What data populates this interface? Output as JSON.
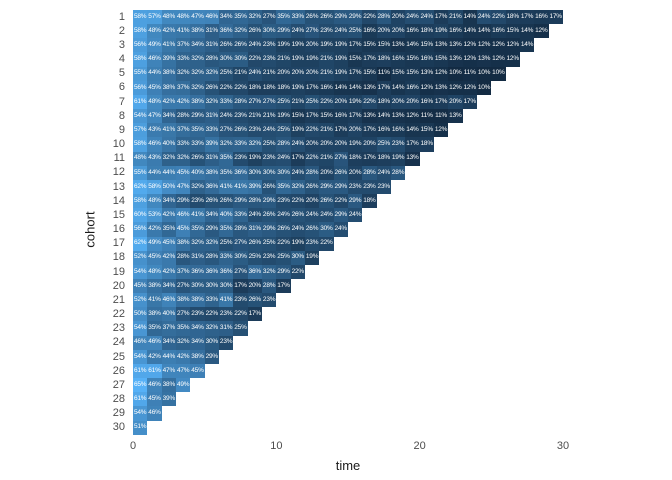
{
  "chart_data": {
    "type": "heatmap",
    "title": "",
    "xlabel": "time",
    "ylabel": "cohort",
    "x_ticks": [
      {
        "value": 0,
        "label": "0"
      },
      {
        "value": 10,
        "label": "10"
      },
      {
        "value": 20,
        "label": "20"
      },
      {
        "value": 30,
        "label": "30"
      }
    ],
    "x_range": [
      0,
      30
    ],
    "value_suffix": "%",
    "legend": "none",
    "grid": "off",
    "color_scale": {
      "low_color": "#132B43",
      "high_color": "#56B1F7",
      "domain": [
        10,
        65
      ]
    },
    "rows": [
      {
        "label": "1",
        "values": [
          58,
          57,
          48,
          48,
          47,
          46,
          34,
          35,
          32,
          27,
          35,
          33,
          26,
          26,
          29,
          29,
          22,
          28,
          20,
          24,
          24,
          17,
          21,
          14,
          24,
          22,
          18,
          17,
          16,
          17
        ]
      },
      {
        "label": "2",
        "values": [
          58,
          48,
          42,
          41,
          38,
          31,
          36,
          32,
          26,
          30,
          29,
          24,
          27,
          23,
          24,
          25,
          16,
          20,
          20,
          16,
          18,
          19,
          16,
          14,
          14,
          16,
          15,
          14,
          12
        ]
      },
      {
        "label": "3",
        "values": [
          56,
          49,
          41,
          37,
          34,
          31,
          26,
          26,
          24,
          23,
          19,
          19,
          20,
          19,
          19,
          17,
          15,
          15,
          13,
          14,
          15,
          13,
          13,
          12,
          12,
          12,
          12,
          14
        ]
      },
      {
        "label": "4",
        "values": [
          58,
          46,
          39,
          33,
          32,
          28,
          30,
          30,
          22,
          23,
          21,
          19,
          19,
          21,
          19,
          15,
          17,
          18,
          16,
          15,
          16,
          15,
          13,
          12,
          13,
          12,
          12
        ]
      },
      {
        "label": "5",
        "values": [
          55,
          44,
          38,
          32,
          32,
          32,
          25,
          21,
          24,
          21,
          20,
          20,
          20,
          21,
          19,
          17,
          15,
          11,
          15,
          15,
          13,
          12,
          10,
          11,
          10,
          10
        ]
      },
      {
        "label": "6",
        "values": [
          56,
          45,
          38,
          37,
          32,
          26,
          22,
          22,
          18,
          18,
          18,
          19,
          17,
          16,
          14,
          14,
          13,
          17,
          14,
          16,
          12,
          13,
          12,
          12,
          10
        ]
      },
      {
        "label": "7",
        "values": [
          61,
          48,
          42,
          42,
          38,
          32,
          33,
          28,
          27,
          27,
          25,
          21,
          25,
          22,
          20,
          19,
          22,
          18,
          20,
          20,
          16,
          17,
          20,
          17
        ]
      },
      {
        "label": "8",
        "values": [
          54,
          47,
          34,
          28,
          29,
          31,
          24,
          23,
          21,
          21,
          19,
          15,
          17,
          15,
          16,
          17,
          13,
          14,
          13,
          12,
          11,
          11,
          13
        ]
      },
      {
        "label": "9",
        "values": [
          57,
          43,
          41,
          37,
          35,
          33,
          27,
          26,
          23,
          24,
          25,
          19,
          22,
          21,
          17,
          20,
          17,
          16,
          16,
          14,
          15,
          12
        ]
      },
      {
        "label": "10",
        "values": [
          58,
          46,
          40,
          33,
          33,
          39,
          32,
          33,
          32,
          25,
          28,
          24,
          20,
          20,
          20,
          19,
          20,
          25,
          23,
          17,
          18
        ]
      },
      {
        "label": "11",
        "values": [
          48,
          43,
          32,
          32,
          26,
          31,
          35,
          23,
          19,
          23,
          24,
          17,
          22,
          21,
          27,
          18,
          17,
          18,
          19,
          13
        ]
      },
      {
        "label": "12",
        "values": [
          55,
          44,
          44,
          45,
          40,
          38,
          35,
          36,
          30,
          30,
          30,
          24,
          28,
          20,
          26,
          20,
          28,
          24,
          28
        ]
      },
      {
        "label": "13",
        "values": [
          62,
          58,
          50,
          47,
          32,
          36,
          41,
          41,
          39,
          26,
          35,
          32,
          26,
          29,
          29,
          23,
          23,
          23
        ]
      },
      {
        "label": "14",
        "values": [
          58,
          48,
          34,
          29,
          23,
          26,
          26,
          29,
          28,
          29,
          23,
          22,
          20,
          26,
          22,
          29,
          18
        ]
      },
      {
        "label": "15",
        "values": [
          60,
          53,
          42,
          46,
          41,
          34,
          40,
          33,
          24,
          26,
          24,
          26,
          24,
          24,
          29,
          24
        ]
      },
      {
        "label": "16",
        "values": [
          56,
          42,
          35,
          45,
          35,
          29,
          35,
          28,
          31,
          29,
          26,
          24,
          26,
          30,
          24
        ]
      },
      {
        "label": "17",
        "values": [
          62,
          49,
          45,
          38,
          32,
          32,
          25,
          27,
          26,
          25,
          22,
          19,
          23,
          22
        ]
      },
      {
        "label": "18",
        "values": [
          52,
          45,
          42,
          28,
          31,
          28,
          33,
          30,
          25,
          23,
          25,
          30,
          19
        ]
      },
      {
        "label": "19",
        "values": [
          54,
          48,
          42,
          37,
          36,
          36,
          36,
          27,
          36,
          32,
          29,
          22
        ]
      },
      {
        "label": "20",
        "values": [
          45,
          38,
          34,
          27,
          30,
          30,
          30,
          17,
          20,
          28,
          17
        ]
      },
      {
        "label": "21",
        "values": [
          52,
          41,
          46,
          38,
          38,
          33,
          41,
          23,
          26,
          23
        ]
      },
      {
        "label": "22",
        "values": [
          50,
          38,
          40,
          27,
          23,
          22,
          23,
          22,
          17
        ]
      },
      {
        "label": "23",
        "values": [
          54,
          35,
          37,
          35,
          34,
          32,
          31,
          25
        ]
      },
      {
        "label": "24",
        "values": [
          46,
          46,
          34,
          32,
          34,
          30,
          23
        ]
      },
      {
        "label": "25",
        "values": [
          54,
          42,
          44,
          42,
          38,
          29
        ]
      },
      {
        "label": "26",
        "values": [
          61,
          61,
          47,
          47,
          45
        ]
      },
      {
        "label": "27",
        "values": [
          65,
          46,
          38,
          49
        ]
      },
      {
        "label": "28",
        "values": [
          61,
          45,
          39
        ]
      },
      {
        "label": "29",
        "values": [
          54,
          46
        ]
      },
      {
        "label": "30",
        "values": [
          51
        ]
      }
    ]
  },
  "axes": {
    "x_title": "time",
    "y_title": "cohort"
  }
}
